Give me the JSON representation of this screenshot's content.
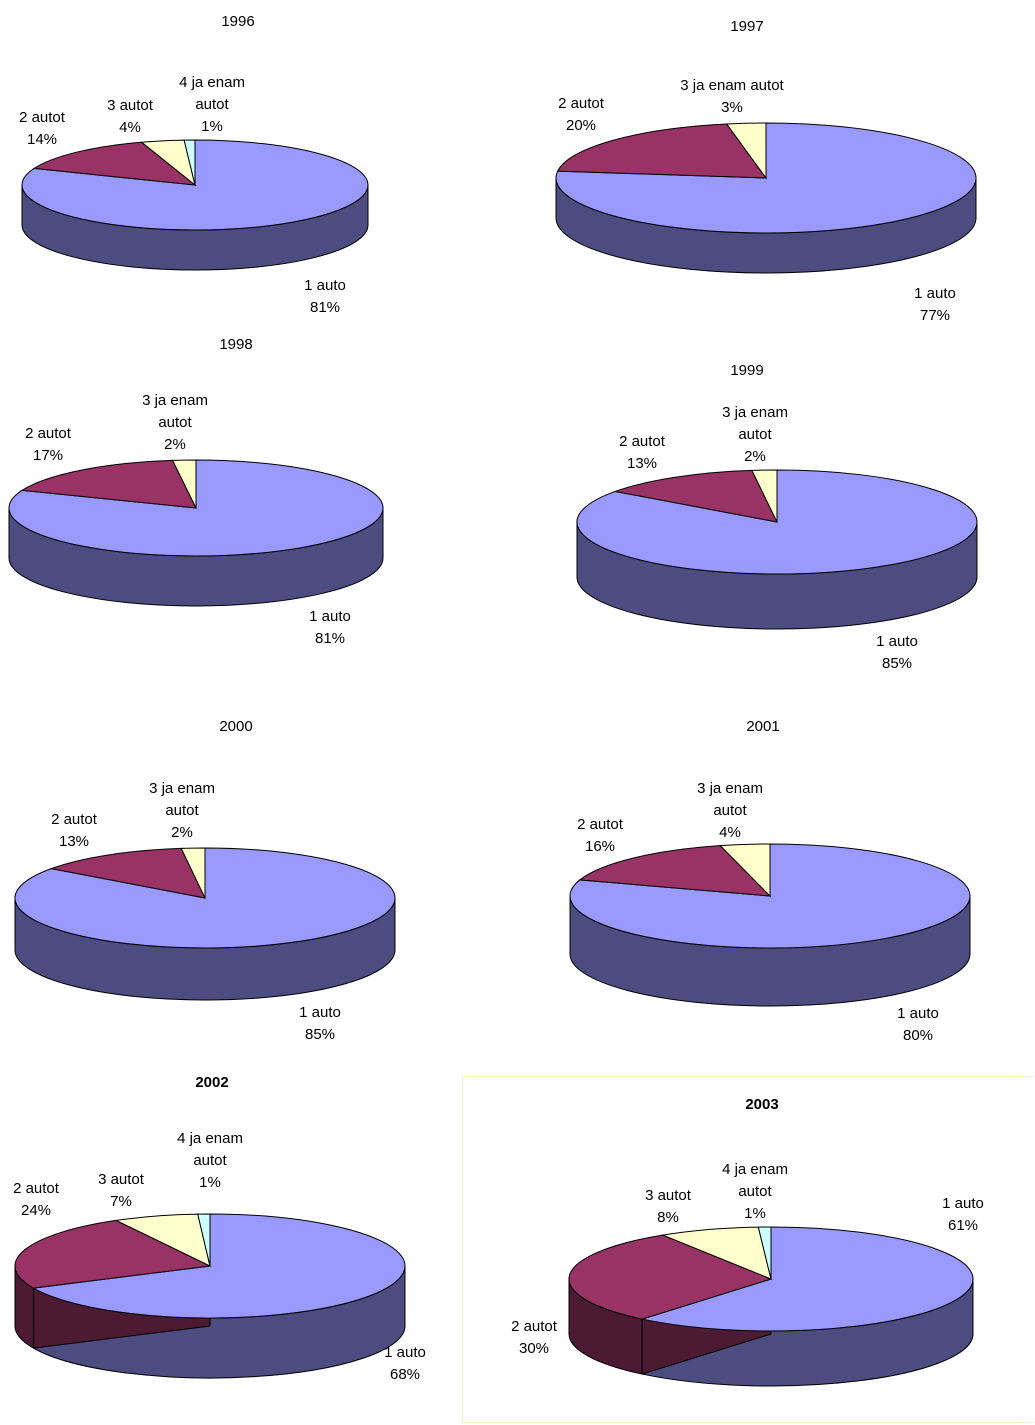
{
  "colors": {
    "slice_top": [
      "#9999ff",
      "#993366",
      "#ffffcc",
      "#ccffff"
    ],
    "slice_side": [
      "#4d4c80",
      "#4d1a33",
      "#80805e",
      "#668080"
    ],
    "edge": "#000000"
  },
  "chart_data": [
    {
      "type": "pie",
      "title": "1996",
      "categories": [
        "1 auto",
        "2 autot",
        "3 autot",
        "4 ja enam autot"
      ],
      "values": [
        81,
        14,
        4,
        1
      ],
      "labels": [
        {
          "lines": [
            "1 auto",
            "81%"
          ]
        },
        {
          "lines": [
            "2 autot",
            "14%"
          ]
        },
        {
          "lines": [
            "3 autot",
            "4%"
          ]
        },
        {
          "lines": [
            "4 ja enam",
            "autot",
            "1%"
          ]
        }
      ]
    },
    {
      "type": "pie",
      "title": "1997",
      "categories": [
        "1 auto",
        "2 autot",
        "3 ja enam autot"
      ],
      "values": [
        77,
        20,
        3
      ],
      "labels": [
        {
          "lines": [
            "1 auto",
            "77%"
          ]
        },
        {
          "lines": [
            "2 autot",
            "20%"
          ]
        },
        {
          "lines": [
            "3 ja enam autot",
            "3%"
          ]
        }
      ]
    },
    {
      "type": "pie",
      "title": "1998",
      "categories": [
        "1 auto",
        "2 autot",
        "3 ja enam autot"
      ],
      "values": [
        81,
        17,
        2
      ],
      "labels": [
        {
          "lines": [
            "1 auto",
            "81%"
          ]
        },
        {
          "lines": [
            "2 autot",
            "17%"
          ]
        },
        {
          "lines": [
            "3 ja enam",
            "autot",
            "2%"
          ]
        }
      ]
    },
    {
      "type": "pie",
      "title": "1999",
      "categories": [
        "1 auto",
        "2 autot",
        "3 ja enam autot"
      ],
      "values": [
        85,
        13,
        2
      ],
      "labels": [
        {
          "lines": [
            "1 auto",
            "85%"
          ]
        },
        {
          "lines": [
            "2 autot",
            "13%"
          ]
        },
        {
          "lines": [
            "3 ja enam",
            "autot",
            "2%"
          ]
        }
      ]
    },
    {
      "type": "pie",
      "title": "2000",
      "categories": [
        "1 auto",
        "2 autot",
        "3 ja enam autot"
      ],
      "values": [
        85,
        13,
        2
      ],
      "labels": [
        {
          "lines": [
            "1 auto",
            "85%"
          ]
        },
        {
          "lines": [
            "2 autot",
            "13%"
          ]
        },
        {
          "lines": [
            "3 ja enam",
            "autot",
            "2%"
          ]
        }
      ]
    },
    {
      "type": "pie",
      "title": "2001",
      "categories": [
        "1 auto",
        "2 autot",
        "3 ja enam autot"
      ],
      "values": [
        80,
        16,
        4
      ],
      "labels": [
        {
          "lines": [
            "1 auto",
            "80%"
          ]
        },
        {
          "lines": [
            "2 autot",
            "16%"
          ]
        },
        {
          "lines": [
            "3 ja enam",
            "autot",
            "4%"
          ]
        }
      ]
    },
    {
      "type": "pie",
      "title": "2002",
      "title_bold": true,
      "categories": [
        "1 auto",
        "2 autot",
        "3 autot",
        "4 ja enam autot"
      ],
      "values": [
        68,
        24,
        7,
        1
      ],
      "labels": [
        {
          "lines": [
            "1 auto",
            "68%"
          ]
        },
        {
          "lines": [
            "2 autot",
            "24%"
          ]
        },
        {
          "lines": [
            "3 autot",
            "7%"
          ]
        },
        {
          "lines": [
            "4 ja enam",
            "autot",
            "1%"
          ]
        }
      ]
    },
    {
      "type": "pie",
      "title": "2003",
      "title_bold": true,
      "categories": [
        "1 auto",
        "2 autot",
        "3 autot",
        "4 ja enam autot"
      ],
      "values": [
        61,
        30,
        8,
        1
      ],
      "labels": [
        {
          "lines": [
            "1 auto",
            "61%"
          ]
        },
        {
          "lines": [
            "2 autot",
            "30%"
          ]
        },
        {
          "lines": [
            "3 autot",
            "8%"
          ]
        },
        {
          "lines": [
            "4 ja enam",
            "autot",
            "1%"
          ]
        }
      ]
    }
  ]
}
